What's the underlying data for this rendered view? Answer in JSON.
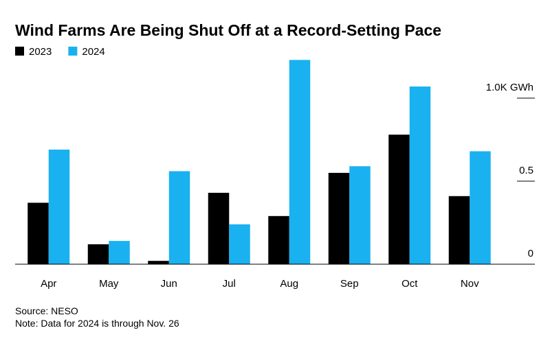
{
  "chart_data": {
    "type": "bar",
    "title": "Wind Farms Are Being Shut Off at a Record-Setting Pace",
    "categories": [
      "Apr",
      "May",
      "Jun",
      "Jul",
      "Aug",
      "Sep",
      "Oct",
      "Nov"
    ],
    "series": [
      {
        "name": "2023",
        "color": "#000000",
        "values": [
          0.37,
          0.12,
          0.02,
          0.43,
          0.29,
          0.55,
          0.78,
          0.41
        ]
      },
      {
        "name": "2024",
        "color": "#1ab1f0",
        "values": [
          0.69,
          0.14,
          0.56,
          0.24,
          1.23,
          0.59,
          1.07,
          0.68
        ]
      }
    ],
    "ylim": [
      0,
      1.25
    ],
    "yticks": [
      0,
      0.5,
      {
        "value": 1,
        "label": "1.0K GWh"
      }
    ],
    "source": "Source: NESO",
    "note": "Note: Data for 2024 is through Nov. 26"
  }
}
